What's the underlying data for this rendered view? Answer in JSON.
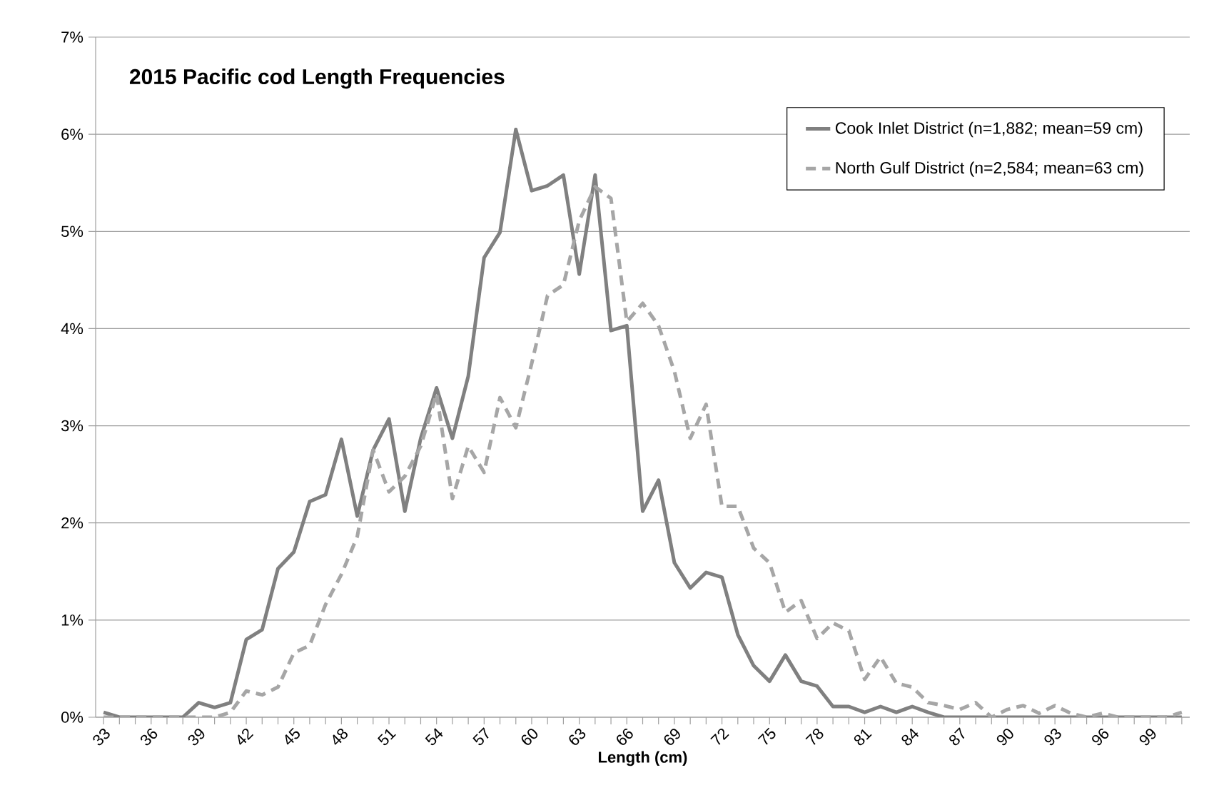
{
  "chart_data": {
    "type": "line",
    "title": "2015 Pacific cod Length Frequencies",
    "xlabel": "Length (cm)",
    "categories": [
      "33",
      null,
      null,
      "36",
      null,
      null,
      "39",
      null,
      null,
      "42",
      null,
      null,
      "45",
      null,
      null,
      "48",
      null,
      null,
      "51",
      null,
      null,
      "54",
      null,
      null,
      "57",
      null,
      null,
      "60",
      null,
      null,
      "63",
      null,
      null,
      "66",
      null,
      null,
      "69",
      null,
      null,
      "72",
      null,
      null,
      "75",
      null,
      null,
      "78",
      null,
      null,
      "81",
      null,
      null,
      "84",
      null,
      null,
      "87",
      null,
      null,
      "90",
      null,
      null,
      "93",
      null,
      null,
      "96",
      null,
      null,
      "99",
      null,
      null
    ],
    "series": [
      {
        "name": "Cook Inlet District (n=1,882; mean=59 cm)",
        "color": "#808080",
        "line_style": "solid",
        "values": [
          0.05,
          0,
          0,
          0,
          0,
          0,
          0.15,
          0.1,
          0.15,
          0.8,
          0.9,
          1.53,
          1.7,
          2.22,
          2.29,
          2.86,
          2.07,
          2.75,
          3.07,
          2.12,
          2.87,
          3.39,
          2.87,
          3.51,
          4.73,
          4.99,
          6.05,
          5.42,
          5.47,
          5.58,
          4.56,
          5.58,
          3.98,
          4.03,
          2.12,
          2.44,
          1.59,
          1.33,
          1.49,
          1.44,
          0.85,
          0.53,
          0.37,
          0.64,
          0.37,
          0.32,
          0.11,
          0.11,
          0.05,
          0.11,
          0.05,
          0.11,
          0.05,
          0,
          0,
          0,
          0,
          0,
          0,
          0,
          0,
          0,
          0,
          0,
          0,
          0,
          0,
          0,
          0
        ]
      },
      {
        "name": "North Gulf District (n=2,584; mean=63 cm)",
        "color": "#a6a6a6",
        "line_style": "dashed",
        "values": [
          0,
          0,
          0,
          0,
          0,
          0,
          0,
          0,
          0.05,
          0.27,
          0.23,
          0.31,
          0.66,
          0.74,
          1.16,
          1.47,
          1.86,
          2.75,
          2.32,
          2.48,
          2.79,
          3.33,
          2.25,
          2.79,
          2.52,
          3.29,
          2.98,
          3.64,
          4.34,
          4.45,
          5.11,
          5.46,
          5.34,
          4.07,
          4.26,
          4.03,
          3.56,
          2.87,
          3.22,
          2.17,
          2.17,
          1.74,
          1.59,
          1.08,
          1.2,
          0.81,
          0.97,
          0.89,
          0.39,
          0.62,
          0.35,
          0.31,
          0.15,
          0.12,
          0.08,
          0.15,
          0,
          0.08,
          0.12,
          0.04,
          0.12,
          0.04,
          0,
          0.04,
          0,
          0,
          0,
          0,
          0.05
        ]
      }
    ],
    "ylim": [
      0,
      7
    ],
    "yticks": [
      {
        "value": 0,
        "label": "0%"
      },
      {
        "value": 1,
        "label": "1%"
      },
      {
        "value": 2,
        "label": "2%"
      },
      {
        "value": 3,
        "label": "3%"
      },
      {
        "value": 4,
        "label": "4%"
      },
      {
        "value": 5,
        "label": "5%"
      },
      {
        "value": 6,
        "label": "6%"
      },
      {
        "value": 7,
        "label": "7%"
      }
    ],
    "grid": "y",
    "legend": "top right",
    "marker": "none"
  }
}
